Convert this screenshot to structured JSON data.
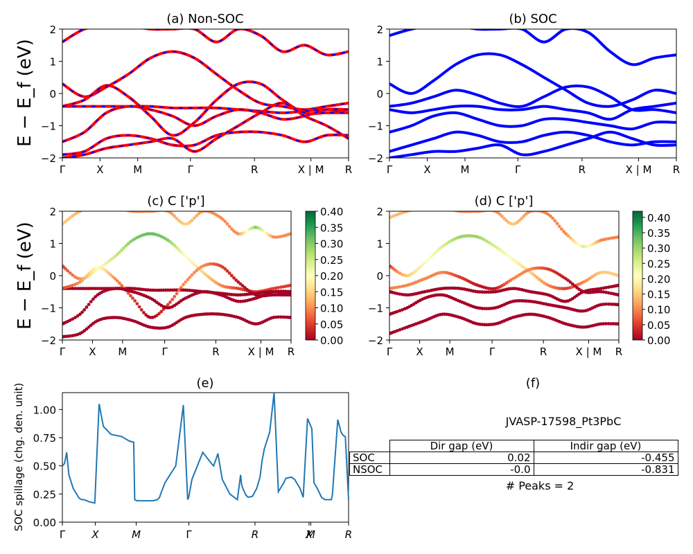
{
  "panels": {
    "a": {
      "title": "(a) Non-SOC"
    },
    "b": {
      "title": "(b) SOC"
    },
    "c": {
      "title": "(c)  C ['p']"
    },
    "d": {
      "title": "(d) C ['p']"
    },
    "e": {
      "title": "(e)"
    },
    "f": {
      "title": "(f)"
    }
  },
  "band_axis": {
    "ylabel": "E − E_f (eV)",
    "yticks": [
      "2",
      "1",
      "0",
      "−1",
      "−2"
    ],
    "xticks": [
      "Γ",
      "X",
      "M",
      "Γ",
      "R",
      "X | M",
      "R"
    ]
  },
  "colorbar": {
    "ticks_c": [
      "0.40",
      "0.35",
      "0.30",
      "0.25",
      "0.20",
      "0.15",
      "0.10",
      "0.05",
      "0.00"
    ],
    "ticks_d": [
      "0.40",
      "0.35",
      "0.30",
      "0.25",
      "0.20",
      "0.15",
      "0.10",
      "0.05",
      "0.00"
    ],
    "colors": [
      "#a50026",
      "#d73027",
      "#f46d43",
      "#fdae61",
      "#fee08b",
      "#ffffbf",
      "#d9ef8b",
      "#a6d96a",
      "#66bd63",
      "#1a9850",
      "#006837"
    ]
  },
  "spillage_axis": {
    "ylabel": "SOC spillage (chg. den. unit)",
    "yticks": [
      "1.00",
      "0.75",
      "0.50",
      "0.25",
      "0.00"
    ],
    "xticks": [
      "Γ",
      "X",
      "M",
      "Γ",
      "R",
      "X",
      "M",
      "R"
    ]
  },
  "info": {
    "material": "JVASP-17598_Pt3PbC",
    "col_dir": "Dir gap (eV)",
    "col_indir": "Indir gap (eV)",
    "rows": [
      {
        "name": "SOC",
        "dir": "0.02",
        "indir": "-0.455"
      },
      {
        "name": "NSOC",
        "dir": "-0.0",
        "indir": "-0.831"
      }
    ],
    "peaks": "# Peaks = 2"
  },
  "colors": {
    "nonsoc_primary": "#ff0000",
    "nonsoc_dash": "#0000ff",
    "soc": "#0000ff",
    "spillage_line": "#1f77b4"
  },
  "chart_data": [
    {
      "type": "line",
      "title": "(a) Non-SOC",
      "ylabel": "E − E_f (eV)",
      "ylim": [
        -2,
        2
      ],
      "x_ticks": [
        "Γ",
        "X",
        "M",
        "Γ",
        "R",
        "X | M",
        "R"
      ],
      "series": [
        {
          "values": [
            0.3,
            -0.1,
            0.2,
            0.6,
            1.1,
            1.3,
            1.1,
            0.6,
            0.1,
            -0.3,
            -0.4,
            -0.5,
            -0.4,
            -0.3
          ]
        },
        {
          "values": [
            -0.4,
            -0.4,
            -0.4,
            -0.4,
            -0.4,
            -0.45,
            -0.45,
            -0.45,
            -0.5,
            -0.55,
            -0.6,
            -0.55,
            -0.5,
            -0.6
          ]
        },
        {
          "values": [
            -0.4,
            -0.2,
            0.25,
            -0.1,
            -0.7,
            -1.3,
            -0.9,
            -0.2,
            0.3,
            0.3,
            -0.2,
            -0.6,
            -0.6,
            -0.6
          ]
        },
        {
          "values": [
            -1.5,
            -1.2,
            -0.6,
            -0.4,
            -0.5,
            -0.7,
            -1.0,
            -0.7,
            -0.5,
            -0.6,
            -0.8,
            -0.7,
            -0.5,
            -0.5
          ]
        },
        {
          "values": [
            -1.9,
            -1.8,
            -1.4,
            -1.3,
            -1.4,
            -1.6,
            -1.6,
            -1.3,
            -1.2,
            -1.2,
            -1.3,
            -1.5,
            -1.3,
            -1.3
          ]
        },
        {
          "values": [
            -2.0,
            -1.9,
            -1.7,
            -1.6,
            -1.5,
            -1.4,
            -1.8,
            -1.4,
            -1.0,
            -0.6,
            -0.3,
            -0.7,
            -1.0,
            -1.4
          ]
        },
        {
          "values": [
            1.6,
            2.0,
            2.1,
            2.1,
            2.0,
            2.0,
            2.0,
            1.6,
            2.0,
            1.8,
            1.3,
            1.5,
            1.2,
            1.3
          ]
        }
      ]
    },
    {
      "type": "line",
      "title": "(b) SOC",
      "ylabel": "E − E_f (eV)",
      "ylim": [
        -2,
        2
      ],
      "x_ticks": [
        "Γ",
        "X",
        "M",
        "Γ",
        "R",
        "X | M",
        "R"
      ],
      "series": [
        {
          "values": [
            0.3,
            0.0,
            0.4,
            0.9,
            1.2,
            1.2,
            0.9,
            0.5,
            0.1,
            -0.3,
            -0.4,
            -0.2,
            0.1,
            0.0
          ]
        },
        {
          "values": [
            -0.4,
            -0.3,
            -0.1,
            0.1,
            -0.05,
            -0.3,
            -0.4,
            -0.1,
            0.2,
            0.2,
            -0.1,
            -0.5,
            -0.5,
            -0.6
          ]
        },
        {
          "values": [
            -0.5,
            -0.6,
            -0.5,
            -0.4,
            -0.4,
            -0.5,
            -0.5,
            -0.4,
            -0.5,
            -0.6,
            -0.8,
            -0.5,
            -0.4,
            -0.3
          ]
        },
        {
          "values": [
            -1.2,
            -1.0,
            -0.7,
            -0.6,
            -0.8,
            -1.0,
            -1.0,
            -0.8,
            -0.8,
            -0.9,
            -1.0,
            -1.1,
            -0.9,
            -0.9
          ]
        },
        {
          "values": [
            -1.8,
            -1.6,
            -1.4,
            -1.2,
            -1.3,
            -1.5,
            -1.5,
            -1.3,
            -1.2,
            -1.3,
            -1.5,
            -1.6,
            -1.5,
            -1.5
          ]
        },
        {
          "values": [
            -2.0,
            -1.9,
            -1.8,
            -1.8,
            -1.7,
            -1.6,
            -1.9,
            -1.8,
            -1.6,
            -1.4,
            -1.2,
            -1.4,
            -1.6,
            -1.6
          ]
        },
        {
          "values": [
            1.8,
            2.0,
            2.1,
            2.1,
            2.0,
            2.0,
            2.0,
            1.6,
            2.0,
            1.9,
            1.3,
            0.9,
            1.1,
            1.2
          ]
        }
      ]
    },
    {
      "type": "scatter",
      "title": "(c)  C ['p']",
      "ylim": [
        -2,
        2
      ],
      "colorbar_range": [
        0,
        0.4
      ],
      "x_ticks": [
        "Γ",
        "X",
        "M",
        "Γ",
        "R",
        "X | M",
        "R"
      ],
      "series": [
        {
          "values": [
            0.3,
            -0.1,
            0.2,
            0.6,
            1.1,
            1.3,
            1.1,
            0.6,
            0.1,
            -0.3,
            -0.4,
            -0.5,
            -0.4,
            -0.3
          ],
          "weights": [
            0.05,
            0.1,
            0.2,
            0.25,
            0.3,
            0.32,
            0.3,
            0.2,
            0.15,
            0.1,
            0.05,
            0.05,
            0.05,
            0.05
          ]
        },
        {
          "values": [
            -0.4,
            -0.4,
            -0.4,
            -0.4,
            -0.4,
            -0.45,
            -0.45,
            -0.45,
            -0.5,
            -0.55,
            -0.6,
            -0.55,
            -0.5,
            -0.6
          ],
          "weights": [
            0.0,
            0.0,
            0.0,
            0.0,
            0.0,
            0.0,
            0.0,
            0.0,
            0.0,
            0.0,
            0.0,
            0.0,
            0.0,
            0.0
          ]
        },
        {
          "values": [
            -0.4,
            -0.2,
            0.25,
            -0.1,
            -0.7,
            -1.3,
            -0.9,
            -0.2,
            0.3,
            0.3,
            -0.2,
            -0.6,
            -0.6,
            -0.6
          ],
          "weights": [
            0.05,
            0.1,
            0.2,
            0.1,
            0.05,
            0.0,
            0.05,
            0.1,
            0.1,
            0.05,
            0.02,
            0.0,
            0.0,
            0.0
          ]
        },
        {
          "values": [
            -1.5,
            -1.2,
            -0.6,
            -0.4,
            -0.5,
            -0.7,
            -1.0,
            -0.7,
            -0.5,
            -0.6,
            -0.8,
            -0.7,
            -0.5,
            -0.5
          ],
          "weights": [
            0.0,
            0.0,
            0.0,
            0.0,
            0.0,
            0.0,
            0.0,
            0.0,
            0.0,
            0.0,
            0.0,
            0.0,
            0.0,
            0.0
          ]
        },
        {
          "values": [
            -1.9,
            -1.8,
            -1.4,
            -1.3,
            -1.4,
            -1.6,
            -1.6,
            -1.3,
            -1.2,
            -1.2,
            -1.3,
            -1.5,
            -1.3,
            -1.3
          ],
          "weights": [
            0.0,
            0.0,
            0.0,
            0.0,
            0.0,
            0.0,
            0.0,
            0.0,
            0.0,
            0.0,
            0.0,
            0.0,
            0.0,
            0.0
          ]
        },
        {
          "values": [
            1.6,
            2.0,
            2.1,
            2.1,
            2.0,
            2.0,
            2.0,
            1.6,
            2.0,
            1.8,
            1.3,
            1.5,
            1.2,
            1.3
          ],
          "weights": [
            0.15,
            0.12,
            0.1,
            0.1,
            0.1,
            0.1,
            0.1,
            0.15,
            0.1,
            0.1,
            0.1,
            0.3,
            0.1,
            0.1
          ]
        }
      ]
    },
    {
      "type": "scatter",
      "title": "(d) C ['p']",
      "ylim": [
        -2,
        2
      ],
      "colorbar_range": [
        0,
        0.42
      ],
      "x_ticks": [
        "Γ",
        "X",
        "M",
        "Γ",
        "R",
        "X | M",
        "R"
      ],
      "series": [
        {
          "values": [
            0.3,
            0.0,
            0.4,
            0.9,
            1.2,
            1.2,
            0.9,
            0.5,
            0.1,
            -0.3,
            -0.4,
            -0.2,
            0.1,
            0.0
          ],
          "weights": [
            0.05,
            0.15,
            0.2,
            0.25,
            0.3,
            0.3,
            0.25,
            0.2,
            0.15,
            0.1,
            0.05,
            0.1,
            0.15,
            0.15
          ]
        },
        {
          "values": [
            -0.4,
            -0.3,
            -0.1,
            0.1,
            -0.05,
            -0.3,
            -0.4,
            -0.1,
            0.2,
            0.2,
            -0.1,
            -0.5,
            -0.5,
            -0.6
          ],
          "weights": [
            0.1,
            0.1,
            0.1,
            0.1,
            0.05,
            0.02,
            0.02,
            0.1,
            0.1,
            0.05,
            0.02,
            0.0,
            0.0,
            0.0
          ]
        },
        {
          "values": [
            -0.5,
            -0.6,
            -0.5,
            -0.4,
            -0.4,
            -0.5,
            -0.5,
            -0.4,
            -0.5,
            -0.6,
            -0.8,
            -0.5,
            -0.4,
            -0.3
          ],
          "weights": [
            0.0,
            0.0,
            0.0,
            0.0,
            0.0,
            0.0,
            0.0,
            0.0,
            0.0,
            0.0,
            0.0,
            0.0,
            0.0,
            0.0
          ]
        },
        {
          "values": [
            -1.2,
            -1.0,
            -0.7,
            -0.6,
            -0.8,
            -1.0,
            -1.0,
            -0.8,
            -0.8,
            -0.9,
            -1.0,
            -1.1,
            -0.9,
            -0.9
          ],
          "weights": [
            0.0,
            0.0,
            0.0,
            0.0,
            0.0,
            0.0,
            0.0,
            0.0,
            0.0,
            0.0,
            0.0,
            0.0,
            0.0,
            0.0
          ]
        },
        {
          "values": [
            -1.8,
            -1.6,
            -1.4,
            -1.2,
            -1.3,
            -1.5,
            -1.5,
            -1.3,
            -1.2,
            -1.3,
            -1.5,
            -1.6,
            -1.5,
            -1.5
          ],
          "weights": [
            0.0,
            0.0,
            0.0,
            0.0,
            0.0,
            0.0,
            0.0,
            0.0,
            0.0,
            0.0,
            0.0,
            0.0,
            0.0,
            0.0
          ]
        },
        {
          "values": [
            1.8,
            2.0,
            2.1,
            2.1,
            2.0,
            2.0,
            2.0,
            1.6,
            2.0,
            1.9,
            1.3,
            0.9,
            1.1,
            1.2
          ],
          "weights": [
            0.15,
            0.12,
            0.1,
            0.1,
            0.1,
            0.1,
            0.1,
            0.15,
            0.1,
            0.1,
            0.1,
            0.25,
            0.1,
            0.1
          ]
        }
      ]
    },
    {
      "type": "line",
      "title": "(e)",
      "ylabel": "SOC spillage (chg. den. unit)",
      "ylim": [
        0,
        1.15
      ],
      "x_ticks": [
        "Γ",
        "X",
        "M",
        "Γ",
        "R",
        "X",
        "M",
        "R"
      ],
      "x": [
        0,
        0.02,
        0.04,
        0.06,
        0.1,
        0.15,
        0.16,
        0.18,
        0.2,
        0.25,
        0.3,
        0.34,
        0.35,
        0.38,
        0.45,
        0.55,
        0.62,
        0.66,
        0.67,
        0.69,
        0.72,
        0.75,
        0.77,
        0.8,
        0.81,
        0.84,
        0.88,
        0.9,
        0.91,
        0.95,
        1.05,
        1.12,
        1.16,
        1.17,
        1.2,
        1.3,
        1.38,
        1.4,
        1.43,
        1.44,
        1.48,
        1.55,
        1.62,
        1.65,
        1.66,
        1.68,
        1.7,
        1.72,
        1.76,
        1.8,
        1.83,
        1.85,
        1.87,
        1.92,
        1.96,
        2.0,
        2.05,
        2.07,
        2.12,
        2.15,
        2.2,
        2.23,
        2.27,
        2.31,
        2.33,
        2.36,
        2.4,
        2.43,
        2.49,
        2.5,
        2.55,
        2.58,
        2.6,
        2.62,
        2.65
      ],
      "series": [
        {
          "name": "",
          "values": [
            0.5,
            0.52,
            0.62,
            0.42,
            0.3,
            0.22,
            0.21,
            0.2,
            0.2,
            0.18,
            0.17,
            1.05,
            1.0,
            0.85,
            0.78,
            0.76,
            0.72,
            0.71,
            0.2,
            0.19,
            0.19,
            0.19,
            0.19,
            0.19,
            0.19,
            0.19,
            0.2,
            0.22,
            0.25,
            0.35,
            0.5,
            1.04,
            0.2,
            0.22,
            0.38,
            0.62,
            0.52,
            0.5,
            0.58,
            0.61,
            0.38,
            0.25,
            0.2,
            0.42,
            0.33,
            0.28,
            0.24,
            0.22,
            0.23,
            0.3,
            0.4,
            0.55,
            0.65,
            0.8,
            1.15,
            0.27,
            0.35,
            0.39,
            0.4,
            0.38,
            0.3,
            0.22,
            0.92,
            0.83,
            0.35,
            0.3,
            0.22,
            0.2,
            0.2,
            0.24,
            0.91,
            0.8,
            0.77,
            0.76,
            0.2
          ]
        }
      ]
    },
    {
      "type": "table",
      "title": "(f)",
      "subtitle": "JVASP-17598_Pt3PbC",
      "columns": [
        "Dir gap (eV)",
        "Indir gap (eV)"
      ],
      "rows": [
        {
          "label": "SOC",
          "values": [
            0.02,
            -0.455
          ]
        },
        {
          "label": "NSOC",
          "values": [
            -0.0,
            -0.831
          ]
        }
      ],
      "note": "# Peaks = 2"
    }
  ]
}
